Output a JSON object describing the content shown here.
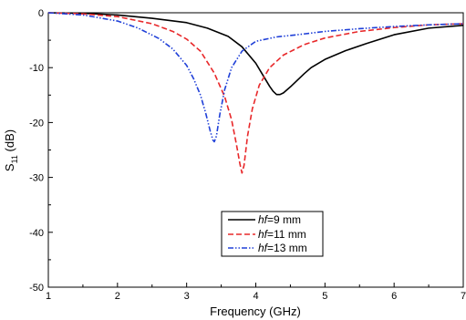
{
  "chart_data": {
    "type": "line",
    "xlabel": "Frequency (GHz)",
    "ylabel_main": "S",
    "ylabel_sub": "11",
    "ylabel_unit": " (dB)",
    "xlim": [
      1,
      7
    ],
    "ylim": [
      -50,
      0
    ],
    "x_ticks": [
      "1",
      "2",
      "3",
      "4",
      "5",
      "6",
      "7"
    ],
    "y_ticks": [
      "0",
      "-10",
      "-20",
      "-30",
      "-40",
      "-50"
    ],
    "grid": false,
    "legend_position": "lower-center",
    "series": [
      {
        "legend_var": "hf",
        "legend_rest": "=9 mm",
        "color": "#000000",
        "dash": "solid",
        "x": [
          1.0,
          1.5,
          2.0,
          2.5,
          3.0,
          3.3,
          3.6,
          3.8,
          4.0,
          4.1,
          4.2,
          4.25,
          4.3,
          4.35,
          4.4,
          4.5,
          4.6,
          4.7,
          4.8,
          5.0,
          5.3,
          5.6,
          6.0,
          6.5,
          7.0
        ],
        "y": [
          0.0,
          -0.1,
          -0.4,
          -1.0,
          -1.8,
          -2.8,
          -4.3,
          -6.2,
          -9.2,
          -11.3,
          -13.4,
          -14.3,
          -14.9,
          -14.9,
          -14.6,
          -13.5,
          -12.3,
          -11.1,
          -10.0,
          -8.5,
          -6.9,
          -5.6,
          -4.0,
          -2.8,
          -2.3
        ]
      },
      {
        "legend_var": "hf",
        "legend_rest": "=11 mm",
        "color": "#e8282a",
        "dash": "dashed",
        "x": [
          1.0,
          1.5,
          2.0,
          2.5,
          2.8,
          3.0,
          3.2,
          3.4,
          3.55,
          3.65,
          3.72,
          3.77,
          3.8,
          3.83,
          3.88,
          3.95,
          4.05,
          4.2,
          4.4,
          4.7,
          5.0,
          5.5,
          6.0,
          6.5,
          7.0
        ],
        "y": [
          0.0,
          -0.2,
          -0.7,
          -2.0,
          -3.4,
          -4.8,
          -7.0,
          -11.0,
          -15.3,
          -19.5,
          -24.0,
          -27.5,
          -29.2,
          -27.8,
          -22.5,
          -17.5,
          -13.2,
          -10.0,
          -7.7,
          -5.8,
          -4.6,
          -3.4,
          -2.7,
          -2.2,
          -2.0
        ]
      },
      {
        "legend_var": "hf",
        "legend_rest": "=13 mm",
        "color": "#2040d8",
        "dash": "dash-dot-dot",
        "x": [
          1.0,
          1.5,
          2.0,
          2.3,
          2.6,
          2.8,
          3.0,
          3.1,
          3.2,
          3.28,
          3.34,
          3.38,
          3.4,
          3.43,
          3.48,
          3.55,
          3.65,
          3.8,
          4.0,
          4.3,
          4.6,
          5.0,
          5.5,
          6.0,
          6.5,
          7.0
        ],
        "y": [
          0.0,
          -0.4,
          -1.5,
          -2.8,
          -4.7,
          -6.6,
          -9.6,
          -12.0,
          -15.0,
          -18.5,
          -21.5,
          -23.2,
          -23.5,
          -22.5,
          -18.5,
          -14.0,
          -10.0,
          -7.0,
          -5.2,
          -4.4,
          -4.0,
          -3.4,
          -2.9,
          -2.5,
          -2.2,
          -2.0
        ]
      }
    ]
  }
}
